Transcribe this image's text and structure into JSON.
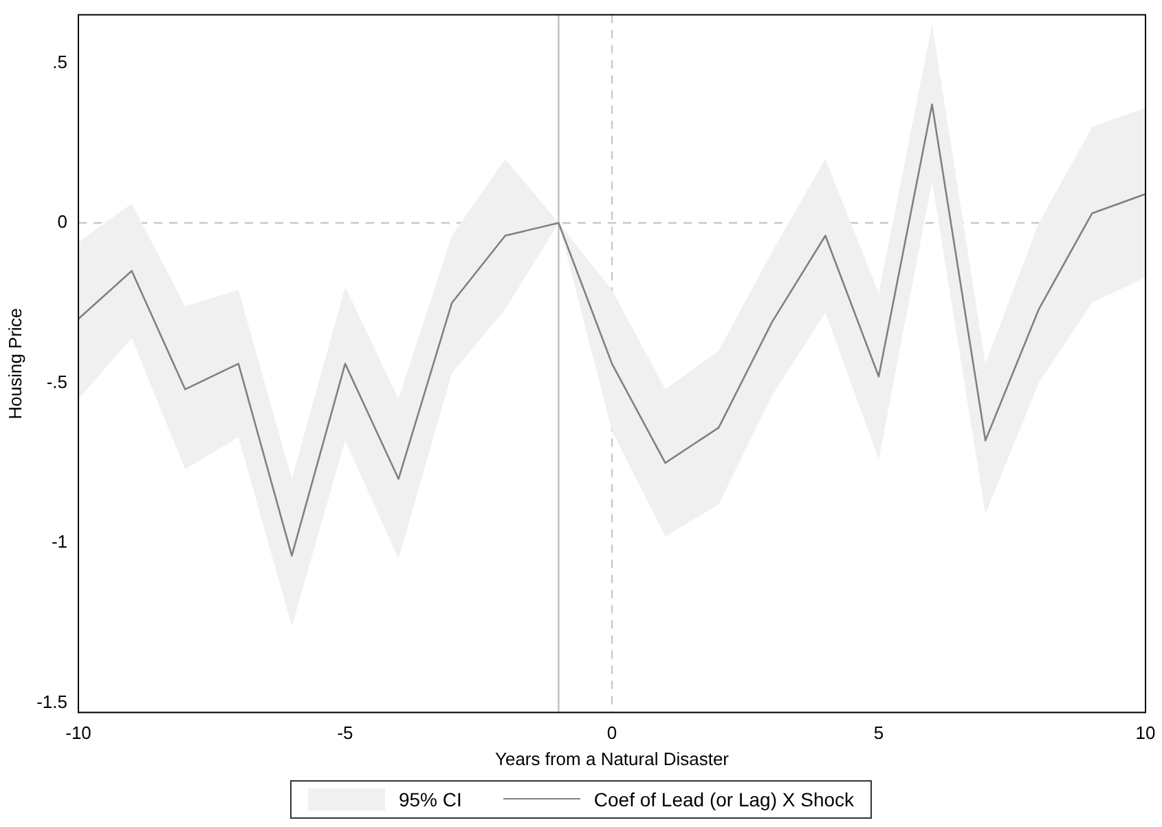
{
  "chart_data": {
    "type": "line",
    "xlabel": "Years from a Natural Disaster",
    "ylabel": "Housing Price",
    "x": [
      -10,
      -9,
      -8,
      -7,
      -6,
      -5,
      -4,
      -3,
      -2,
      -1,
      0,
      1,
      2,
      3,
      4,
      5,
      6,
      7,
      8,
      9,
      10
    ],
    "series": [
      {
        "name": "Coef of Lead (or Lag) X Shock",
        "color": "#808080",
        "values": [
          -0.3,
          -0.15,
          -0.52,
          -0.44,
          -1.04,
          -0.44,
          -0.8,
          -0.25,
          -0.04,
          0,
          -0.44,
          -0.75,
          -0.64,
          -0.31,
          -0.04,
          -0.48,
          0.37,
          -0.68,
          -0.27,
          0.03,
          0.09
        ],
        "lower": [
          -0.55,
          -0.36,
          -0.77,
          -0.67,
          -1.26,
          -0.68,
          -1.05,
          -0.47,
          -0.27,
          0,
          -0.65,
          -0.98,
          -0.88,
          -0.54,
          -0.28,
          -0.74,
          0.13,
          -0.91,
          -0.5,
          -0.25,
          -0.17
        ],
        "upper": [
          -0.06,
          0.06,
          -0.26,
          -0.21,
          -0.8,
          -0.2,
          -0.55,
          -0.04,
          0.2,
          0,
          -0.21,
          -0.52,
          -0.4,
          -0.09,
          0.2,
          -0.22,
          0.62,
          -0.44,
          0,
          0.3,
          0.36
        ]
      }
    ],
    "annotations": [
      "95% CI"
    ],
    "xlim": [
      -10,
      10
    ],
    "xticks": [
      -10,
      -5,
      0,
      5,
      10
    ],
    "ylim": [
      -1.53,
      0.65
    ],
    "yticks": [
      {
        "value": -1.5,
        "label": "-1.5"
      },
      {
        "value": -1,
        "label": "-1"
      },
      {
        "value": -0.5,
        "label": "-.5"
      },
      {
        "value": 0,
        "label": "0"
      },
      {
        "value": 0.5,
        "label": ".5"
      }
    ],
    "ref_lines": [
      {
        "axis": "x",
        "value": -1,
        "color": "#c0c0c0",
        "line_style": "solid"
      },
      {
        "axis": "x",
        "value": 0,
        "color": "#c8c8c8",
        "line_style": "dashed"
      },
      {
        "axis": "y",
        "value": 0,
        "color": "#c8c8c8",
        "line_style": "dashed"
      }
    ],
    "grid": false,
    "legend": "bottom",
    "marker": "none",
    "line_style": "solid"
  }
}
